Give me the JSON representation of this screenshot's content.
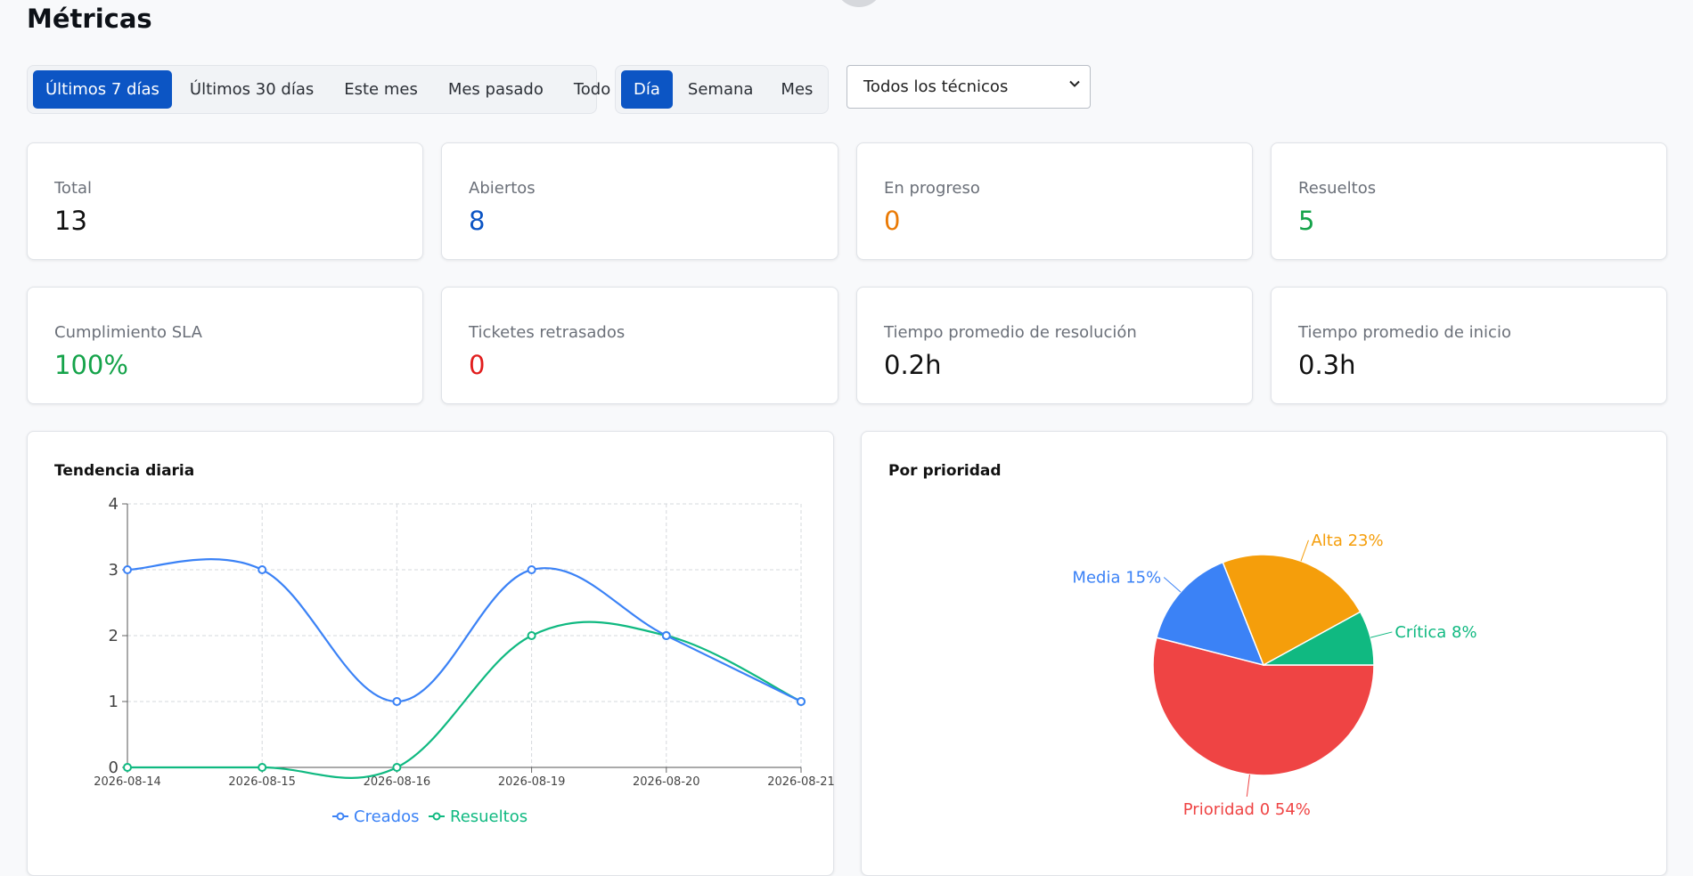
{
  "page": {
    "title": "Métricas"
  },
  "filters": {
    "ranges": [
      "Últimos 7 días",
      "Últimos 30 días",
      "Este mes",
      "Mes pasado",
      "Todo"
    ],
    "active_range": "Últimos 7 días",
    "granularity": [
      "Día",
      "Semana",
      "Mes"
    ],
    "active_granularity": "Día",
    "technician_select": "Todos los técnicos"
  },
  "metrics": [
    {
      "label": "Total",
      "value": "13",
      "color": "#111111"
    },
    {
      "label": "Abiertos",
      "value": "8",
      "color": "#0c55c4"
    },
    {
      "label": "En progreso",
      "value": "0",
      "color": "#ea7a05"
    },
    {
      "label": "Resueltos",
      "value": "5",
      "color": "#15a34a"
    },
    {
      "label": "Cumplimiento SLA",
      "value": "100%",
      "color": "#15a34a"
    },
    {
      "label": "Ticketes retrasados",
      "value": "0",
      "color": "#e11d1d"
    },
    {
      "label": "Tiempo promedio de resolución",
      "value": "0.2h",
      "color": "#111111"
    },
    {
      "label": "Tiempo promedio de inicio",
      "value": "0.3h",
      "color": "#111111"
    }
  ],
  "chart_data": [
    {
      "type": "line",
      "title": "Tendencia diaria",
      "x": [
        "2026-08-14",
        "2026-08-15",
        "2026-08-16",
        "2026-08-19",
        "2026-08-20",
        "2026-08-21"
      ],
      "series": [
        {
          "name": "Creados",
          "values": [
            3,
            3,
            1,
            3,
            2,
            1
          ],
          "color": "#3b82f6"
        },
        {
          "name": "Resueltos",
          "values": [
            0,
            0,
            0,
            2,
            2,
            1
          ],
          "color": "#10b981"
        }
      ],
      "ylim": [
        0,
        4
      ],
      "yticks": [
        0,
        1,
        2,
        3,
        4
      ],
      "grid": true,
      "legend": "bottom"
    },
    {
      "type": "pie",
      "title": "Por prioridad",
      "slices": [
        {
          "label": "Prioridad 0 54%",
          "value": 54,
          "color": "#ef4444"
        },
        {
          "label": "Media 15%",
          "value": 15,
          "color": "#3b82f6"
        },
        {
          "label": "Alta 23%",
          "value": 23,
          "color": "#f59e0b"
        },
        {
          "label": "Crítica 8%",
          "value": 8,
          "color": "#10b981"
        }
      ]
    }
  ]
}
